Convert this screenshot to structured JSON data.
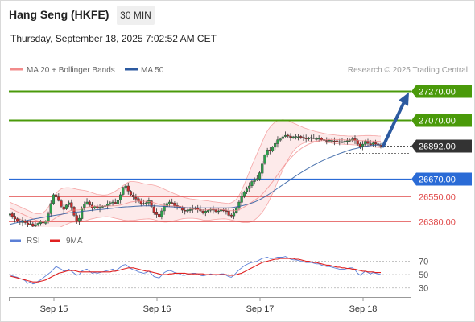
{
  "header": {
    "title": "Hang Seng (HKFE)",
    "timeframe": "30 MIN",
    "datetime": "Thursday, September 18, 2025 7:02:52 AM CET"
  },
  "colors": {
    "up": "#2f9e4c",
    "down": "#c62b2b",
    "ma50": "#2c5aa0",
    "bollinger": "#f28b8b",
    "resistance": "#4a9a0a",
    "support_blue": "#2a6bd6",
    "support_red": "#e04848",
    "current": "#333333",
    "arrow": "#2c5aa0",
    "rsi": "#5b7fd6",
    "rsi_ma": "#e02020"
  },
  "chart_data": [
    {
      "type": "candlestick",
      "legend": [
        {
          "label": "MA 20 + Bollinger Bands",
          "color": "#f28b8b"
        },
        {
          "label": "MA 50",
          "color": "#2c5aa0"
        }
      ],
      "watermark": "Research © 2025 Trading Central",
      "x_ticks": [
        "Sep 15",
        "Sep 16",
        "Sep 17",
        "Sep 18"
      ],
      "levels": [
        {
          "value": 27270,
          "label": "27270.00",
          "kind": "resistance"
        },
        {
          "value": 27070,
          "label": "27070.00",
          "kind": "resistance"
        },
        {
          "value": 26892,
          "label": "26892.00",
          "kind": "current"
        },
        {
          "value": 26670,
          "label": "26670.00",
          "kind": "support_blue"
        },
        {
          "value": 26550,
          "label": "26550.00",
          "kind": "support_red"
        },
        {
          "value": 26380,
          "label": "26380.00",
          "kind": "support_red"
        }
      ],
      "ylim": [
        26340,
        27350
      ],
      "close": [
        26428,
        26412,
        26395,
        26380,
        26372,
        26385,
        26370,
        26355,
        26360,
        26345,
        26352,
        26365,
        26375,
        26368,
        26380,
        26430,
        26500,
        26560,
        26545,
        26520,
        26480,
        26460,
        26490,
        26505,
        26475,
        26420,
        26380,
        26400,
        26470,
        26495,
        26510,
        26490,
        26470,
        26480,
        26470,
        26475,
        26480,
        26485,
        26495,
        26505,
        26510,
        26500,
        26520,
        26560,
        26610,
        26620,
        26585,
        26560,
        26545,
        26530,
        26515,
        26500,
        26495,
        26505,
        26520,
        26480,
        26440,
        26425,
        26410,
        26450,
        26480,
        26500,
        26510,
        26500,
        26485,
        26480,
        26470,
        26455,
        26450,
        26455,
        26460,
        26465,
        26470,
        26460,
        26450,
        26440,
        26448,
        26455,
        26460,
        26455,
        26445,
        26450,
        26458,
        26455,
        26445,
        26420,
        26415,
        26440,
        26470,
        26510,
        26550,
        26580,
        26600,
        26620,
        26650,
        26660,
        26670,
        26710,
        26770,
        26830,
        26865,
        26860,
        26885,
        26910,
        26935,
        26940,
        26955,
        26965,
        26960,
        26950,
        26955,
        26958,
        26955,
        26950,
        26945,
        26940,
        26945,
        26950,
        26945,
        26942,
        26945,
        26935,
        26930,
        26928,
        26932,
        26930,
        26925,
        26920,
        26918,
        26920,
        26925,
        26928,
        26935,
        26940,
        26930,
        26905,
        26890,
        26905,
        26925,
        26910,
        26900,
        26912,
        26905,
        26898,
        26892
      ],
      "ma20": [
        26468,
        26460,
        26452,
        26444,
        26436,
        26428,
        26420,
        26412,
        26404,
        26396,
        26388,
        26382,
        26378,
        26375,
        26374,
        26376,
        26382,
        26392,
        26404,
        26416,
        26424,
        26431,
        26439,
        26447,
        26454,
        26455,
        26455,
        26457,
        26462,
        26468,
        26474,
        26478,
        26480,
        26481,
        26482,
        26482,
        26482,
        26482,
        26482,
        26483,
        26484,
        26485,
        26487,
        26490,
        26495,
        26500,
        26505,
        26510,
        26513,
        26515,
        26516,
        26516,
        26515,
        26514,
        26513,
        26510,
        26505,
        26500,
        26495,
        26490,
        26487,
        26485,
        26484,
        26483,
        26482,
        26481,
        26480,
        26478,
        26474,
        26470,
        26466,
        26463,
        26460,
        26458,
        26456,
        26455,
        26456,
        26458,
        26460,
        26461,
        26461,
        26460,
        26459,
        26458,
        26456,
        26453,
        26451,
        26451,
        26453,
        26458,
        26466,
        26476,
        26487,
        26498,
        26510,
        26522,
        26534,
        26548,
        26564,
        26583,
        26604,
        26625,
        26648,
        26672,
        26697,
        26721,
        26745,
        26768,
        26790,
        26810,
        26828,
        26845,
        26860,
        26874,
        26886,
        26896,
        26905,
        26912,
        26918,
        26924,
        26928,
        26931,
        26934,
        26935,
        26936,
        26936,
        26936,
        26936,
        26935,
        26934,
        26934,
        26933,
        26933,
        26933,
        26932,
        26930,
        26929,
        26928,
        26928,
        26928,
        26927,
        26926,
        26925,
        26924,
        26923
      ],
      "bb_upper": [
        26510,
        26502,
        26494,
        26486,
        26478,
        26470,
        26462,
        26454,
        26446,
        26438,
        26432,
        26430,
        26432,
        26438,
        26452,
        26475,
        26505,
        26540,
        26568,
        26588,
        26600,
        26606,
        26608,
        26608,
        26606,
        26602,
        26598,
        26594,
        26592,
        26590,
        26586,
        26580,
        26574,
        26568,
        26562,
        26560,
        26558,
        26558,
        26560,
        26566,
        26574,
        26585,
        26596,
        26608,
        26622,
        26635,
        26646,
        26650,
        26650,
        26648,
        26645,
        26640,
        26636,
        26633,
        26630,
        26628,
        26625,
        26620,
        26614,
        26606,
        26598,
        26590,
        26582,
        26574,
        26566,
        26560,
        26552,
        26546,
        26540,
        26536,
        26532,
        26530,
        26528,
        26526,
        26524,
        26522,
        26520,
        26518,
        26515,
        26512,
        26510,
        26508,
        26506,
        26504,
        26502,
        26500,
        26505,
        26515,
        26530,
        26555,
        26590,
        26630,
        26672,
        26715,
        26758,
        26800,
        26840,
        26880,
        26920,
        26960,
        26995,
        27020,
        27040,
        27055,
        27065,
        27070,
        27072,
        27070,
        27065,
        27058,
        27050,
        27042,
        27034,
        27026,
        27018,
        27012,
        27006,
        27000,
        26995,
        26990,
        26986,
        26982,
        26978,
        26975,
        26972,
        26970,
        26968,
        26966,
        26964,
        26963,
        26962,
        26961,
        26960,
        26960,
        26960,
        26961,
        26962,
        26963,
        26964,
        26964,
        26964,
        26963,
        26962,
        26961,
        26960
      ],
      "bb_lower": [
        26426,
        26418,
        26410,
        26402,
        26394,
        26386,
        26378,
        26370,
        26362,
        26354,
        26344,
        26334,
        26324,
        26316,
        26310,
        26306,
        26306,
        26310,
        26320,
        26332,
        26342,
        26350,
        26358,
        26366,
        26372,
        26374,
        26374,
        26374,
        26376,
        26380,
        26386,
        26392,
        26396,
        26400,
        26404,
        26406,
        26408,
        26410,
        26410,
        26408,
        26404,
        26400,
        26396,
        26392,
        26388,
        26385,
        26384,
        26385,
        26386,
        26388,
        26390,
        26392,
        26394,
        26395,
        26396,
        26394,
        26390,
        26385,
        26380,
        26376,
        26374,
        26374,
        26376,
        26380,
        26384,
        26388,
        26392,
        26396,
        26398,
        26400,
        26400,
        26400,
        26398,
        26396,
        26392,
        26388,
        26386,
        26386,
        26388,
        26390,
        26392,
        26394,
        26395,
        26396,
        26395,
        26392,
        26388,
        26384,
        26380,
        26376,
        26372,
        26370,
        26370,
        26372,
        26378,
        26388,
        26402,
        26420,
        26440,
        26465,
        26495,
        26530,
        26568,
        26608,
        26650,
        26690,
        26730,
        26766,
        26800,
        26830,
        26856,
        26876,
        26892,
        26904,
        26912,
        26918,
        26922,
        26924,
        26924,
        26924,
        26922,
        26920,
        26918,
        26916,
        26914,
        26912,
        26910,
        26908,
        26906,
        26905,
        26904,
        26903,
        26902,
        26901,
        26900,
        26898,
        26896,
        26894,
        26892,
        26890,
        26888,
        26886,
        26884,
        26883,
        26882
      ],
      "ma50": [
        26358,
        26362,
        26366,
        26370,
        26374,
        26378,
        26382,
        26386,
        26390,
        26394,
        26397,
        26400,
        26403,
        26406,
        26409,
        26412,
        26415,
        26418,
        26421,
        26424,
        26427,
        26430,
        26433,
        26436,
        26438,
        26440,
        26442,
        26444,
        26446,
        26448,
        26450,
        26452,
        26454,
        26456,
        26458,
        26459,
        26460,
        26462,
        26464,
        26466,
        26468,
        26470,
        26472,
        26474,
        26476,
        26477,
        26478,
        26479,
        26480,
        26481,
        26482,
        26483,
        26484,
        26484,
        26484,
        26484,
        26484,
        26483,
        26482,
        26481,
        26480,
        26479,
        26478,
        26477,
        26476,
        26475,
        26474,
        26473,
        26472,
        26471,
        26470,
        26470,
        26470,
        26470,
        26470,
        26470,
        26470,
        26470,
        26470,
        26470,
        26470,
        26470,
        26470,
        26470,
        26470,
        26470,
        26472,
        26474,
        26477,
        26480,
        26484,
        26488,
        26493,
        26498,
        26504,
        26510,
        26518,
        26526,
        26536,
        26546,
        26557,
        26568,
        26580,
        26592,
        26604,
        26616,
        26628,
        26640,
        26652,
        26664,
        26676,
        26688,
        26699,
        26710,
        26721,
        26732,
        26742,
        26752,
        26762,
        26771,
        26780,
        26789,
        26797,
        26805,
        26813,
        26820,
        26827,
        26834,
        26841,
        26847,
        26853,
        26859,
        26865,
        26870,
        26874,
        26878,
        26882,
        26886,
        26890,
        26893,
        26895,
        26897,
        26899,
        26900,
        26901
      ],
      "rsi_legend": [
        {
          "label": "RSI",
          "color": "#5b7fd6"
        },
        {
          "label": "9MA",
          "color": "#e02020"
        }
      ],
      "rsi_ticks": [
        70,
        50,
        30
      ],
      "rsi": [
        51,
        48,
        47,
        46,
        44,
        43,
        41,
        37,
        39,
        36,
        37,
        40,
        42,
        45,
        48,
        51,
        54,
        58,
        62,
        60,
        58,
        55,
        56,
        58,
        55,
        52,
        49,
        50,
        55,
        57,
        58,
        55,
        52,
        53,
        52,
        53,
        54,
        55,
        56,
        57,
        58,
        56,
        58,
        61,
        64,
        65,
        62,
        59,
        57,
        56,
        54,
        53,
        52,
        53,
        55,
        51,
        47,
        46,
        45,
        49,
        53,
        55,
        56,
        55,
        53,
        52,
        51,
        49,
        49,
        50,
        51,
        52,
        52,
        51,
        49,
        48,
        49,
        50,
        51,
        50,
        49,
        50,
        51,
        51,
        49,
        47,
        46,
        49,
        53,
        57,
        60,
        63,
        65,
        67,
        68,
        69,
        70,
        72,
        74,
        75,
        76,
        74,
        74,
        75,
        76,
        76,
        76,
        77,
        75,
        73,
        72,
        72,
        71,
        70,
        69,
        68,
        68,
        68,
        67,
        66,
        66,
        64,
        63,
        62,
        62,
        61,
        60,
        59,
        58,
        58,
        58,
        59,
        60,
        60,
        57,
        52,
        49,
        52,
        55,
        53,
        51,
        53,
        52,
        51,
        50
      ],
      "rsi_ma": [
        48,
        47,
        46,
        45,
        44,
        43,
        42,
        41,
        40,
        39,
        39,
        39,
        40,
        41,
        42,
        44,
        46,
        48,
        50,
        52,
        53,
        54,
        55,
        56,
        56,
        56,
        55,
        54,
        54,
        54,
        54,
        54,
        54,
        54,
        54,
        54,
        54,
        54,
        54,
        54,
        55,
        55,
        56,
        57,
        58,
        59,
        60,
        60,
        60,
        59,
        58,
        57,
        56,
        55,
        55,
        54,
        53,
        52,
        51,
        50,
        50,
        50,
        51,
        51,
        52,
        52,
        52,
        52,
        52,
        51,
        51,
        51,
        51,
        51,
        51,
        51,
        50,
        50,
        50,
        50,
        50,
        50,
        50,
        50,
        50,
        49,
        49,
        49,
        50,
        51,
        52,
        54,
        56,
        58,
        60,
        62,
        64,
        66,
        68,
        69,
        70,
        71,
        72,
        73,
        73,
        74,
        74,
        74,
        74,
        74,
        74,
        73,
        73,
        72,
        71,
        70,
        70,
        69,
        68,
        68,
        67,
        66,
        65,
        64,
        64,
        63,
        62,
        61,
        61,
        60,
        60,
        59,
        59,
        58,
        58,
        57,
        56,
        55,
        55,
        54,
        54,
        54,
        53,
        53,
        53
      ],
      "rsi_ylim": [
        20,
        85
      ]
    }
  ]
}
